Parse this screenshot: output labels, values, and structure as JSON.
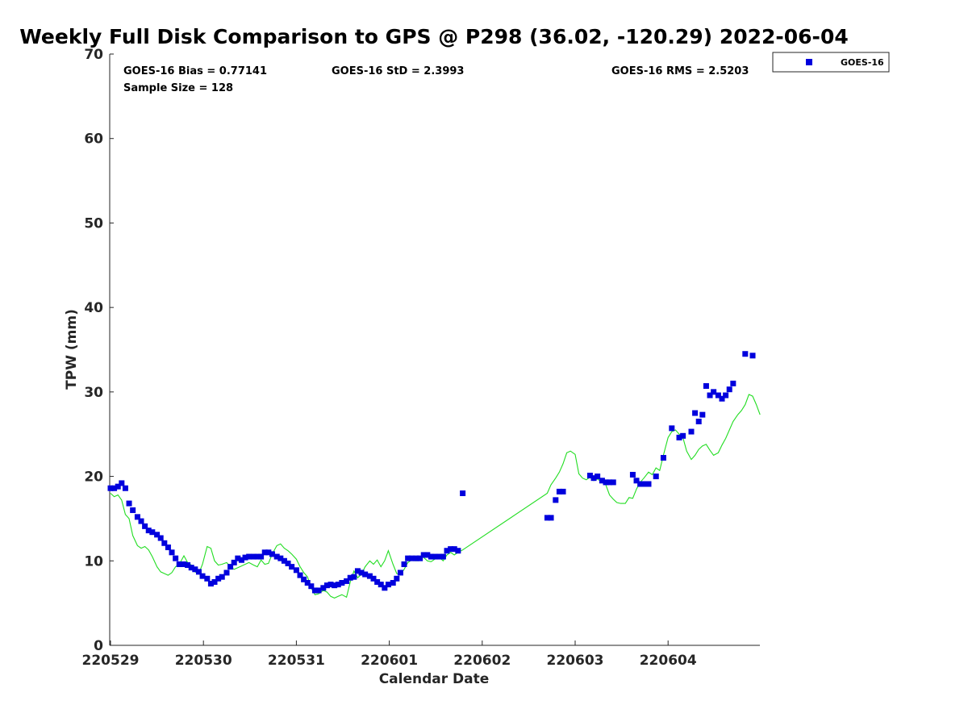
{
  "chart_data": {
    "type": "scatter",
    "title": "Weekly Full Disk Comparison to GPS @ P298 (36.02, -120.29) 2022-06-04",
    "xlabel": "Calendar Date",
    "ylabel": "TPW (mm)",
    "xlim": [
      0,
      7.0
    ],
    "ylim": [
      0,
      70
    ],
    "x_unit": "days since 220529",
    "xticks": [
      {
        "value": 0,
        "label": "220529"
      },
      {
        "value": 1,
        "label": "220530"
      },
      {
        "value": 2,
        "label": "220531"
      },
      {
        "value": 3,
        "label": "220601"
      },
      {
        "value": 4,
        "label": "220602"
      },
      {
        "value": 5,
        "label": "220603"
      },
      {
        "value": 6,
        "label": "220604"
      }
    ],
    "yticks": [
      0,
      10,
      20,
      30,
      40,
      50,
      60,
      70
    ],
    "stats": {
      "bias": "GOES-16 Bias = 0.77141",
      "std": "GOES-16 StD = 2.3993",
      "rms": "GOES-16 RMS = 2.5203",
      "sample": "Sample Size = 128"
    },
    "legend": {
      "position": "outside-top-right",
      "entries": [
        "GOES-16"
      ]
    },
    "colors": {
      "goes16": "#0000dd",
      "gps": "#22dd22",
      "axis": "#262626"
    },
    "series": [
      {
        "name": "GOES-16",
        "marker": "square",
        "color": "#0000dd",
        "x": [
          0.0,
          0.04,
          0.08,
          0.12,
          0.16,
          0.2,
          0.24,
          0.29,
          0.33,
          0.37,
          0.41,
          0.45,
          0.5,
          0.54,
          0.58,
          0.62,
          0.66,
          0.7,
          0.74,
          0.79,
          0.83,
          0.87,
          0.91,
          0.95,
          0.99,
          1.04,
          1.08,
          1.12,
          1.16,
          1.2,
          1.25,
          1.29,
          1.33,
          1.37,
          1.41,
          1.45,
          1.49,
          1.54,
          1.58,
          1.62,
          1.66,
          1.7,
          1.74,
          1.79,
          1.83,
          1.87,
          1.91,
          1.95,
          2.0,
          2.04,
          2.08,
          2.12,
          2.16,
          2.2,
          2.24,
          2.29,
          2.33,
          2.37,
          2.41,
          2.45,
          2.49,
          2.54,
          2.58,
          2.62,
          2.66,
          2.7,
          2.74,
          2.79,
          2.83,
          2.87,
          2.91,
          2.95,
          2.99,
          3.04,
          3.08,
          3.12,
          3.16,
          3.2,
          3.24,
          3.29,
          3.33,
          3.37,
          3.41,
          3.45,
          3.49,
          3.54,
          3.58,
          3.62,
          3.66,
          3.7,
          3.74,
          3.79,
          4.7,
          4.74,
          4.79,
          4.83,
          4.87,
          5.16,
          5.2,
          5.24,
          5.29,
          5.33,
          5.37,
          5.41,
          5.62,
          5.66,
          5.7,
          5.74,
          5.79,
          5.87,
          5.95,
          6.04,
          6.12,
          6.16,
          6.25,
          6.29,
          6.33,
          6.37,
          6.41,
          6.45,
          6.49,
          6.54,
          6.58,
          6.62,
          6.66,
          6.7,
          6.83,
          6.91
        ],
        "y": [
          18.6,
          18.6,
          18.8,
          19.2,
          18.6,
          16.8,
          16.0,
          15.2,
          14.7,
          14.1,
          13.6,
          13.4,
          13.1,
          12.7,
          12.1,
          11.6,
          11.0,
          10.3,
          9.6,
          9.6,
          9.5,
          9.2,
          9.0,
          8.7,
          8.2,
          7.9,
          7.3,
          7.5,
          7.9,
          8.1,
          8.6,
          9.3,
          9.8,
          10.3,
          10.1,
          10.4,
          10.5,
          10.5,
          10.5,
          10.5,
          11.0,
          11.0,
          10.8,
          10.5,
          10.3,
          10.0,
          9.7,
          9.3,
          8.9,
          8.3,
          7.8,
          7.4,
          7.0,
          6.5,
          6.5,
          6.8,
          7.1,
          7.2,
          7.1,
          7.2,
          7.4,
          7.6,
          8.0,
          8.1,
          8.8,
          8.6,
          8.4,
          8.2,
          7.9,
          7.5,
          7.2,
          6.8,
          7.2,
          7.4,
          7.9,
          8.6,
          9.6,
          10.3,
          10.3,
          10.3,
          10.3,
          10.7,
          10.7,
          10.5,
          10.5,
          10.5,
          10.5,
          11.2,
          11.4,
          11.4,
          11.2,
          18.0,
          15.1,
          15.1,
          17.2,
          18.2,
          18.2,
          20.1,
          19.8,
          20.0,
          19.5,
          19.3,
          19.3,
          19.3,
          20.2,
          19.5,
          19.1,
          19.1,
          19.1,
          20.0,
          22.2,
          25.7,
          24.6,
          24.8,
          25.3,
          27.5,
          26.5,
          27.3,
          30.7,
          29.6,
          30.0,
          29.6,
          29.2,
          29.6,
          30.3,
          31.0,
          34.5,
          34.3
        ]
      },
      {
        "name": "GPS",
        "marker": "line",
        "color": "#22dd22",
        "x": [
          0.0,
          0.04,
          0.08,
          0.12,
          0.16,
          0.2,
          0.24,
          0.29,
          0.33,
          0.37,
          0.41,
          0.45,
          0.5,
          0.54,
          0.58,
          0.62,
          0.66,
          0.7,
          0.74,
          0.79,
          0.83,
          0.87,
          0.91,
          0.95,
          0.99,
          1.04,
          1.08,
          1.12,
          1.16,
          1.2,
          1.25,
          1.29,
          1.33,
          1.37,
          1.41,
          1.45,
          1.49,
          1.54,
          1.58,
          1.62,
          1.66,
          1.7,
          1.74,
          1.79,
          1.83,
          1.87,
          1.91,
          1.95,
          2.0,
          2.04,
          2.08,
          2.12,
          2.16,
          2.2,
          2.24,
          2.29,
          2.33,
          2.37,
          2.41,
          2.45,
          2.49,
          2.54,
          2.58,
          2.62,
          2.66,
          2.7,
          2.74,
          2.79,
          2.83,
          2.87,
          2.91,
          2.95,
          2.99,
          3.04,
          3.08,
          3.12,
          3.16,
          3.2,
          3.24,
          3.29,
          3.33,
          3.37,
          3.41,
          3.45,
          3.49,
          3.54,
          3.58,
          3.62,
          3.66,
          3.7,
          3.74,
          3.79,
          4.7,
          4.74,
          4.79,
          4.83,
          4.87,
          4.91,
          4.95,
          5.0,
          5.04,
          5.08,
          5.12,
          5.16,
          5.2,
          5.24,
          5.29,
          5.33,
          5.37,
          5.41,
          5.45,
          5.49,
          5.54,
          5.58,
          5.62,
          5.66,
          5.7,
          5.74,
          5.79,
          5.83,
          5.87,
          5.91,
          5.95,
          6.0,
          6.04,
          6.08,
          6.12,
          6.16,
          6.2,
          6.25,
          6.29,
          6.33,
          6.37,
          6.41,
          6.45,
          6.49,
          6.54,
          6.58,
          6.62,
          6.66,
          6.7,
          6.75,
          6.79,
          6.83,
          6.87,
          6.91,
          6.95,
          6.99
        ],
        "y": [
          18.0,
          17.6,
          17.8,
          17.2,
          15.5,
          15.0,
          13.0,
          11.8,
          11.5,
          11.7,
          11.3,
          10.5,
          9.3,
          8.7,
          8.5,
          8.3,
          8.6,
          9.3,
          9.6,
          10.6,
          9.8,
          9.5,
          8.7,
          8.5,
          9.6,
          11.7,
          11.5,
          10.0,
          9.5,
          9.6,
          9.8,
          9.3,
          9.0,
          9.2,
          9.4,
          9.6,
          9.8,
          9.5,
          9.3,
          10.1,
          9.6,
          9.7,
          10.8,
          11.8,
          12.0,
          11.5,
          11.2,
          10.8,
          10.2,
          9.3,
          8.6,
          8.1,
          6.8,
          6.0,
          6.1,
          6.5,
          6.3,
          5.8,
          5.6,
          5.8,
          6.0,
          5.7,
          7.5,
          8.8,
          8.0,
          8.4,
          9.3,
          10.0,
          9.6,
          10.1,
          9.3,
          10.0,
          11.2,
          9.6,
          8.5,
          8.4,
          9.0,
          9.8,
          10.1,
          10.0,
          10.5,
          10.4,
          10.0,
          9.9,
          10.2,
          10.4,
          10.0,
          10.7,
          11.0,
          10.7,
          11.0,
          11.3,
          18.0,
          19.0,
          19.8,
          20.5,
          21.5,
          22.8,
          23.0,
          22.6,
          20.3,
          19.8,
          19.6,
          19.9,
          19.5,
          19.7,
          19.3,
          19.0,
          17.8,
          17.3,
          16.9,
          16.8,
          16.8,
          17.5,
          17.4,
          18.5,
          19.3,
          19.8,
          20.5,
          20.2,
          21.0,
          20.7,
          22.5,
          24.6,
          25.3,
          25.5,
          25.0,
          24.6,
          23.0,
          22.0,
          22.5,
          23.2,
          23.6,
          23.8,
          23.1,
          22.5,
          22.8,
          23.7,
          24.5,
          25.5,
          26.5,
          27.3,
          27.8,
          28.5,
          29.7,
          29.5,
          28.5,
          27.3
        ]
      }
    ]
  }
}
